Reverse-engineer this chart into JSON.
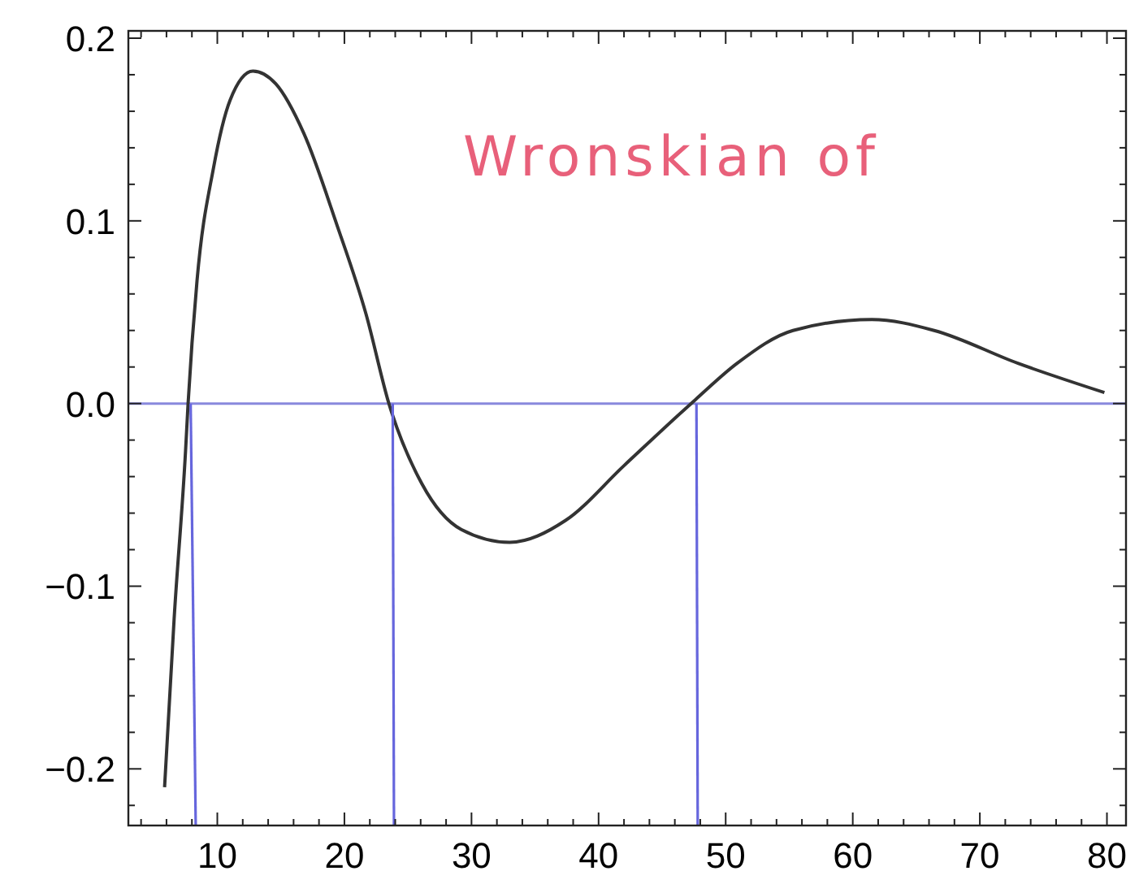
{
  "chart_data": {
    "type": "line",
    "annotations": [
      "Wronskian of"
    ],
    "xlim": [
      3,
      81.5
    ],
    "ylim": [
      -0.231,
      0.204
    ],
    "xticks": [
      {
        "value": 4,
        "label": null
      },
      {
        "value": 6,
        "label": null
      },
      {
        "value": 8,
        "label": null
      },
      10,
      {
        "value": 12,
        "label": null
      },
      {
        "value": 14,
        "label": null
      },
      {
        "value": 16,
        "label": null
      },
      {
        "value": 18,
        "label": null
      },
      20,
      {
        "value": 22,
        "label": null
      },
      {
        "value": 24,
        "label": null
      },
      {
        "value": 26,
        "label": null
      },
      {
        "value": 28,
        "label": null
      },
      30,
      {
        "value": 32,
        "label": null
      },
      {
        "value": 34,
        "label": null
      },
      {
        "value": 36,
        "label": null
      },
      {
        "value": 38,
        "label": null
      },
      40,
      {
        "value": 42,
        "label": null
      },
      {
        "value": 44,
        "label": null
      },
      {
        "value": 46,
        "label": null
      },
      {
        "value": 48,
        "label": null
      },
      50,
      {
        "value": 52,
        "label": null
      },
      {
        "value": 54,
        "label": null
      },
      {
        "value": 56,
        "label": null
      },
      {
        "value": 58,
        "label": null
      },
      60,
      {
        "value": 62,
        "label": null
      },
      {
        "value": 64,
        "label": null
      },
      {
        "value": 66,
        "label": null
      },
      {
        "value": 68,
        "label": null
      },
      70,
      {
        "value": 72,
        "label": null
      },
      {
        "value": 74,
        "label": null
      },
      {
        "value": 76,
        "label": null
      },
      {
        "value": 78,
        "label": null
      },
      80
    ],
    "yticks": [
      {
        "value": -0.22,
        "label": null
      },
      {
        "value": -0.2,
        "label": "−0.2"
      },
      {
        "value": -0.18,
        "label": null
      },
      {
        "value": -0.16,
        "label": null
      },
      {
        "value": -0.14,
        "label": null
      },
      {
        "value": -0.12,
        "label": null
      },
      {
        "value": -0.1,
        "label": "−0.1"
      },
      {
        "value": -0.08,
        "label": null
      },
      {
        "value": -0.06,
        "label": null
      },
      {
        "value": -0.04,
        "label": null
      },
      {
        "value": -0.02,
        "label": null
      },
      {
        "value": 0,
        "label": "0.0"
      },
      {
        "value": 0.02,
        "label": null
      },
      {
        "value": 0.04,
        "label": null
      },
      {
        "value": 0.06,
        "label": null
      },
      {
        "value": 0.08,
        "label": null
      },
      {
        "value": 0.1,
        "label": "0.1"
      },
      {
        "value": 0.12,
        "label": null
      },
      {
        "value": 0.14,
        "label": null
      },
      {
        "value": 0.16,
        "label": null
      },
      {
        "value": 0.18,
        "label": null
      },
      {
        "value": 0.2,
        "label": "0.2"
      }
    ],
    "grid": false,
    "ref_lines": [
      {
        "axis": "y",
        "value": 0,
        "color": "#8888dd"
      }
    ],
    "series": [
      {
        "color": "#333333",
        "x": [
          5.85,
          6.6,
          7.5,
          7.7,
          8.4,
          9.7,
          11.0,
          12.8,
          14.6,
          16.8,
          19.4,
          21.7,
          23.5,
          26.1,
          29.2,
          33.0,
          37.4,
          42.0,
          47.6,
          50.9,
          55.3,
          61.5,
          66.4,
          73.0,
          79.8
        ],
        "values": [
          -0.21,
          -0.118,
          -0.026,
          0,
          0.067,
          0.129,
          0.166,
          0.182,
          0.175,
          0.148,
          0.098,
          0.049,
          0,
          -0.044,
          -0.069,
          -0.076,
          -0.064,
          -0.034,
          0.002,
          0.022,
          0.04,
          0.046,
          0.04,
          0.022,
          0.006
        ]
      },
      {
        "color": "#6666dd",
        "x": [
          7.9,
          8.3
        ],
        "values": [
          0,
          -0.231
        ]
      },
      {
        "color": "#6666dd",
        "x": [
          23.8,
          23.9
        ],
        "values": [
          0,
          -0.231
        ]
      },
      {
        "color": "#6666dd",
        "x": [
          47.7,
          47.8
        ],
        "values": [
          0,
          -0.231
        ]
      }
    ]
  }
}
